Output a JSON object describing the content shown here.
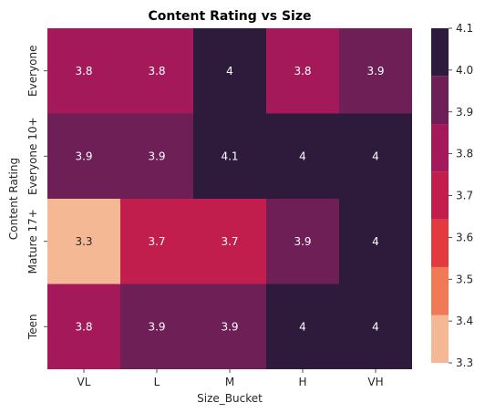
{
  "chart_data": {
    "type": "heatmap",
    "title": "Content Rating vs Size",
    "xlabel": "Size_Bucket",
    "ylabel": "Content Rating",
    "x_categories": [
      "VL",
      "L",
      "M",
      "H",
      "VH"
    ],
    "y_categories": [
      "Everyone",
      "Everyone 10+",
      "Mature 17+",
      "Teen"
    ],
    "values": [
      [
        3.8,
        3.8,
        4.0,
        3.8,
        3.9
      ],
      [
        3.9,
        3.9,
        4.1,
        4.0,
        4.0
      ],
      [
        3.3,
        3.7,
        3.7,
        3.9,
        4.0
      ],
      [
        3.8,
        3.9,
        3.9,
        4.0,
        4.0
      ]
    ],
    "annotations": [
      [
        "3.8",
        "3.8",
        "4",
        "3.8",
        "3.9"
      ],
      [
        "3.9",
        "3.9",
        "4.1",
        "4",
        "4"
      ],
      [
        "3.3",
        "3.7",
        "3.7",
        "3.9",
        "4"
      ],
      [
        "3.8",
        "3.9",
        "3.9",
        "4",
        "4"
      ]
    ],
    "colorbar": {
      "range": [
        3.3,
        4.1
      ],
      "ticks": [
        "3.3",
        "3.4",
        "3.5",
        "3.6",
        "3.7",
        "3.8",
        "3.9",
        "4.0",
        "4.1"
      ],
      "bins": [
        {
          "from": 3.3,
          "to": 3.414,
          "color": "#f5b895"
        },
        {
          "from": 3.414,
          "to": 3.529,
          "color": "#f07a56"
        },
        {
          "from": 3.529,
          "to": 3.643,
          "color": "#e23a3f"
        },
        {
          "from": 3.643,
          "to": 3.757,
          "color": "#c11e4d"
        },
        {
          "from": 3.757,
          "to": 3.871,
          "color": "#a3195a"
        },
        {
          "from": 3.871,
          "to": 3.986,
          "color": "#6d1f56"
        },
        {
          "from": 3.986,
          "to": 4.1,
          "color": "#2e1b3c"
        }
      ]
    },
    "text_colors": {
      "dark": "#262626",
      "light": "#ffffff"
    }
  }
}
